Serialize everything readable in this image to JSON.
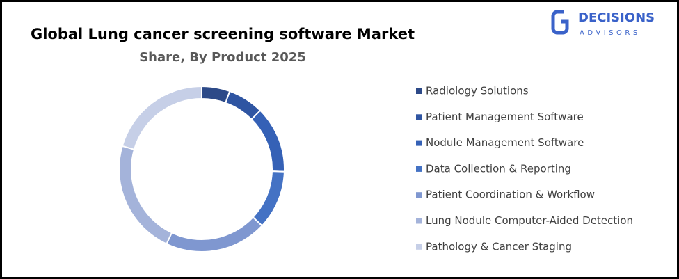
{
  "chart_data": {
    "type": "donut",
    "title": "Global Lung cancer screening software Market",
    "subtitle": "Share, By Product 2025",
    "categories": [
      "Radiology Solutions",
      "Patient Management Software",
      "Nodule Management Software",
      "Data Collection & Reporting",
      "Patient Coordination & Workflow",
      "Lung Nodule Computer-Aided Detection",
      "Pathology & Cancer Staging"
    ],
    "values": [
      5.5,
      7,
      13,
      11.5,
      20,
      22.5,
      20.5
    ],
    "colors": [
      "#2d4a88",
      "#2f55a2",
      "#3561b6",
      "#4472c4",
      "#7f97d0",
      "#a4b3da",
      "#c6cfe7"
    ],
    "legend": "right"
  },
  "logo": {
    "name": "DECISIONS",
    "tagline": "ADVISORS"
  }
}
